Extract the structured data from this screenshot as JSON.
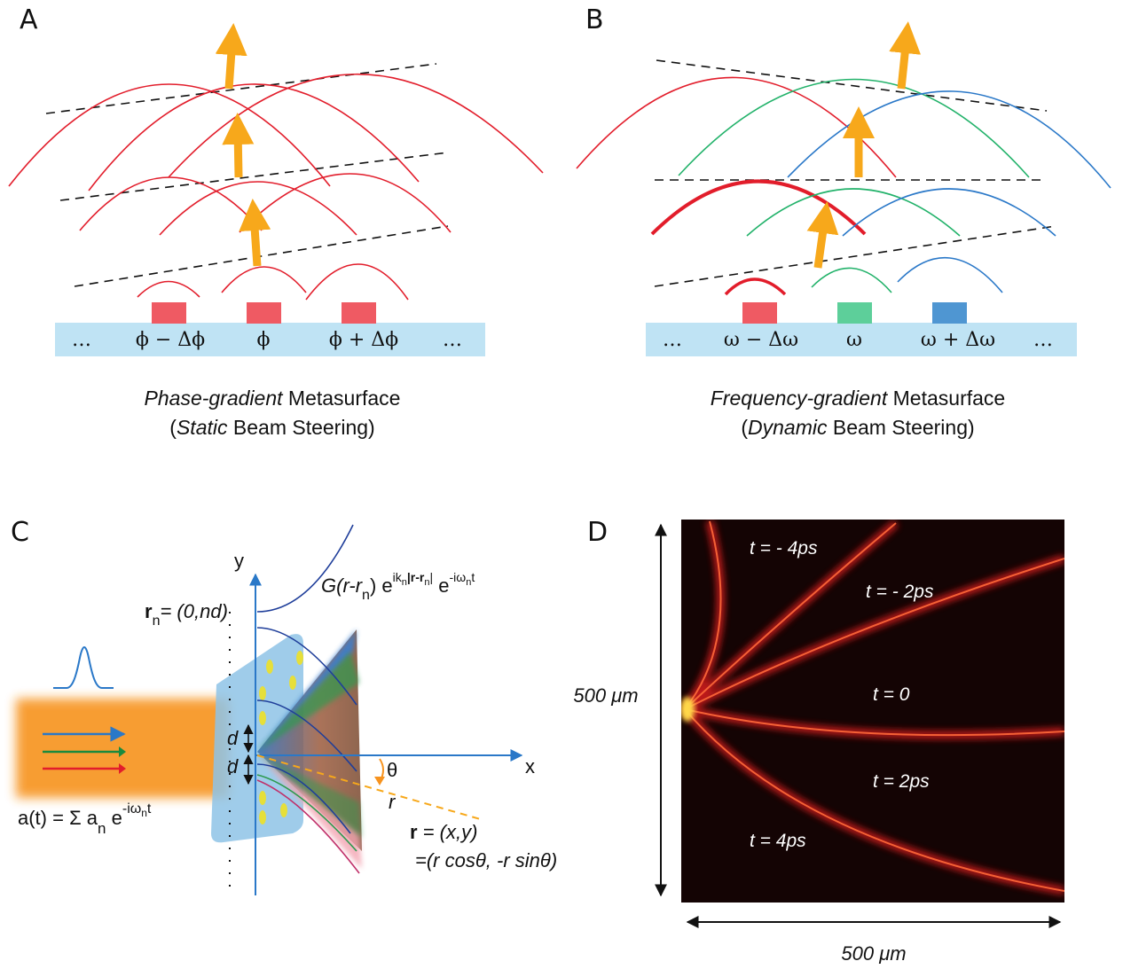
{
  "panels": {
    "a": {
      "letter": "A",
      "cells": [
        "…",
        "ϕ − Δϕ",
        "ϕ",
        "ϕ + Δϕ",
        "…"
      ],
      "caption_italic": "Phase-gradient",
      "caption_rest": " Metasurface",
      "caption2_open": "(",
      "caption2_italic": "Static",
      "caption2_rest": " Beam Steering)",
      "colors": {
        "element": "#ef5a63",
        "substrate": "#bfe3f4",
        "wave": "#e21d2b",
        "arrow": "#f7a81b"
      }
    },
    "b": {
      "letter": "B",
      "cells": [
        "…",
        "ω − Δω",
        "ω",
        "ω + Δω",
        "…"
      ],
      "caption_italic": "Frequency-gradient",
      "caption_rest": " Metasurface",
      "caption2_open": "(",
      "caption2_italic": "Dynamic",
      "caption2_rest": " Beam Steering)",
      "colors": {
        "element_red": "#ef5a63",
        "element_green": "#5dcf9a",
        "element_blue": "#4f96d2"
      }
    },
    "c": {
      "letter": "C",
      "y_axis": "y",
      "x_axis": "x",
      "rn_bold": "r",
      "rn_sub": "n",
      "rn_rest": "= (0,nd)",
      "green_fn": "G(r-r",
      "green_fn_sub": "n",
      "green_fn_rest": ") e",
      "green_exp1": "ik",
      "green_exp1b": "n",
      "green_exp1c": "|r-r",
      "green_exp1d": "n",
      "green_exp1e": "|",
      "green_e2": " e",
      "green_exp2": "-iω",
      "green_exp2b": "n",
      "green_exp2c": "t",
      "d1": "d",
      "d2": "d",
      "theta": "θ",
      "r_label": "r",
      "pos_bold": "r",
      "pos_rest": " = (x,y)",
      "pos2": "=(r cosθ, -r sinθ)",
      "input_main": "a(t) = Σ a",
      "input_sub": "n",
      "input_e": " e",
      "input_exp": "-iω",
      "input_exp_sub": "n",
      "input_exp_t": "t"
    },
    "d": {
      "letter": "D",
      "ylabel": "500 μm",
      "xlabel": "500 μm",
      "times": [
        "t = - 4ps",
        "t = - 2ps",
        "t = 0",
        "t = 2ps",
        "t = 4ps"
      ]
    }
  }
}
